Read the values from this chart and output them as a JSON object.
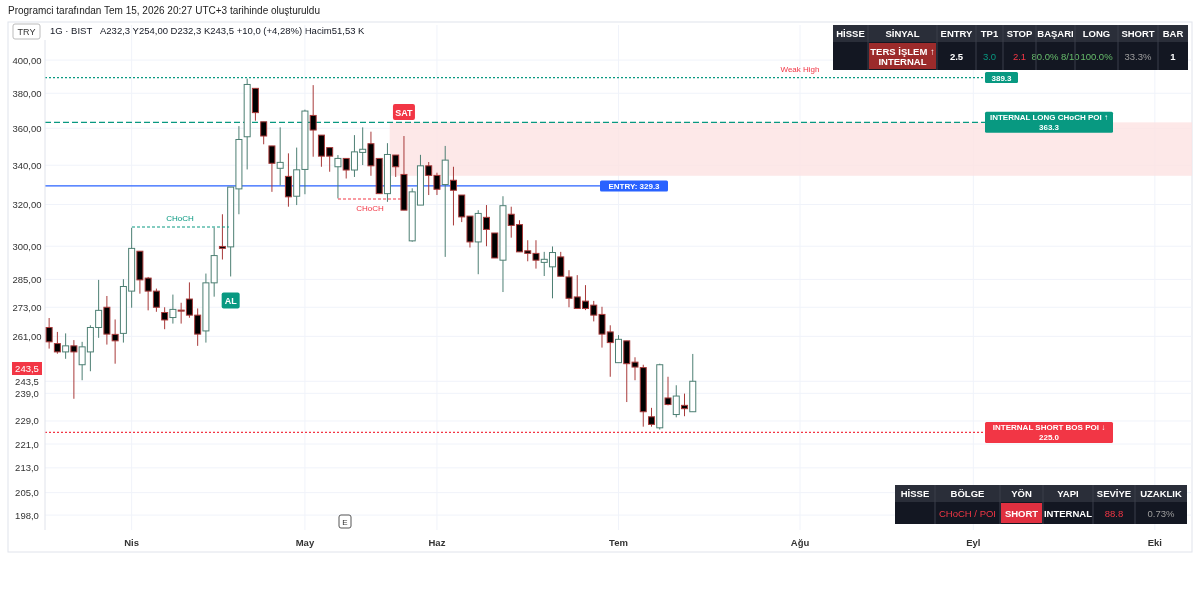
{
  "chart_data": [
    {
      "type": "candlestick",
      "title": "1G · BIST",
      "subtitle": "A232,3  Y254,00  D232,3  K243,5  +10,0 (+4,28%)  Hacim51,53 K",
      "categories": [
        null,
        null,
        null,
        null,
        null,
        null,
        null,
        null,
        null,
        null,
        "Nis",
        null,
        null,
        null,
        null,
        null,
        null,
        null,
        null,
        null,
        null,
        null,
        null,
        null,
        null,
        null,
        null,
        null,
        null,
        null,
        null,
        "May",
        null,
        null,
        null,
        null,
        null,
        null,
        null,
        null,
        null,
        null,
        null,
        null,
        null,
        null,
        null,
        "Haz",
        null,
        null,
        null,
        null,
        null,
        null,
        null,
        null,
        null,
        null,
        null,
        null,
        null,
        null,
        null,
        null,
        null,
        null,
        null,
        null,
        null,
        "Tem",
        null,
        null,
        null,
        null,
        null,
        null,
        null,
        null,
        null,
        null,
        null,
        null,
        null,
        null,
        null,
        null,
        null,
        null,
        null,
        null,
        null,
        "Ağu",
        null,
        null,
        null,
        null,
        null,
        null,
        null,
        null,
        null,
        null,
        null,
        null,
        null,
        null,
        null,
        null,
        null,
        null,
        null,
        null,
        "Eyl",
        null,
        null,
        null,
        null,
        null,
        null,
        null,
        null,
        null,
        null,
        null,
        null,
        null,
        null,
        null,
        null,
        null,
        null,
        null,
        null,
        null,
        "Eki",
        null,
        null,
        null,
        null
      ],
      "ohlc": [
        [
          264.6,
          268.5,
          256.1,
          258.8
        ],
        [
          258.1,
          262.8,
          254.1,
          254.8
        ],
        [
          254.8,
          262.2,
          252.1,
          257.2
        ],
        [
          257.2,
          259.5,
          237.0,
          254.8
        ],
        [
          249.8,
          258.8,
          243.9,
          256.8
        ],
        [
          254.8,
          265.5,
          247.3,
          264.6
        ],
        [
          264.6,
          284.8,
          260.4,
          271.7
        ],
        [
          273.0,
          277.8,
          257.7,
          261.9
        ],
        [
          261.8,
          267.9,
          250.2,
          259.2
        ],
        [
          262.2,
          285.1,
          258.5,
          281.9
        ],
        [
          279.9,
          308.7,
          272.8,
          299.0
        ],
        [
          297.7,
          297.7,
          278.8,
          284.8
        ],
        [
          285.6,
          286.1,
          271.7,
          279.9
        ],
        [
          279.9,
          281.0,
          271.1,
          273.0
        ],
        [
          270.8,
          273.0,
          263.9,
          267.7
        ],
        [
          268.7,
          278.4,
          266.2,
          272.1
        ],
        [
          271.8,
          274.9,
          266.2,
          271.7
        ],
        [
          276.5,
          283.7,
          268.6,
          269.7
        ],
        [
          269.7,
          272.5,
          257.2,
          261.9
        ],
        [
          263.2,
          287.6,
          258.5,
          283.5
        ],
        [
          283.5,
          308.7,
          277.5,
          295.7
        ],
        [
          299.9,
          315.2,
          293.9,
          299.0
        ],
        [
          299.7,
          328.7,
          286.3,
          328.7
        ],
        [
          327.8,
          361.2,
          315.2,
          353.8
        ],
        [
          355.3,
          388.7,
          337.8,
          385.2
        ],
        [
          382.9,
          382.9,
          364.2,
          368.8
        ],
        [
          363.6,
          363.6,
          351.2,
          355.7
        ],
        [
          350.3,
          350.3,
          326.3,
          341.0
        ],
        [
          338.4,
          360.5,
          329.6,
          341.5
        ],
        [
          334.2,
          346.3,
          318.9,
          323.8
        ],
        [
          324.1,
          349.4,
          319.7,
          337.6
        ],
        [
          337.8,
          370.5,
          325.1,
          369.7
        ],
        [
          367.2,
          384.8,
          344.5,
          359.0
        ],
        [
          356.2,
          356.2,
          339.2,
          344.8
        ],
        [
          349.4,
          349.4,
          336.6,
          344.8
        ],
        [
          339.2,
          345.4,
          323.0,
          343.6
        ],
        [
          343.6,
          343.6,
          333.1,
          337.5
        ],
        [
          337.5,
          356.2,
          333.9,
          347.1
        ],
        [
          346.8,
          360.5,
          340.1,
          348.5
        ],
        [
          351.5,
          358.1,
          334.5,
          339.7
        ],
        [
          343.6,
          343.6,
          325.4,
          325.4
        ],
        [
          325.4,
          351.8,
          321.3,
          345.7
        ],
        [
          345.4,
          345.4,
          333.9,
          339.2
        ],
        [
          335.2,
          355.7,
          317.2,
          317.2
        ],
        [
          302.5,
          328.1,
          302.1,
          326.3
        ],
        [
          319.7,
          345.5,
          319.7,
          339.7
        ],
        [
          339.7,
          341.7,
          324.7,
          334.7
        ],
        [
          334.7,
          336.1,
          324.7,
          327.6
        ],
        [
          330.0,
          350.3,
          295.1,
          342.7
        ],
        [
          332.2,
          339.2,
          309.8,
          327.1
        ],
        [
          324.7,
          324.7,
          311.4,
          313.9
        ],
        [
          314.3,
          314.3,
          299.4,
          302.0
        ],
        [
          302.0,
          317.2,
          287.3,
          315.6
        ],
        [
          313.7,
          319.7,
          300.0,
          307.9
        ],
        [
          306.2,
          306.2,
          294.6,
          294.6
        ],
        [
          293.6,
          324.1,
          279.5,
          319.4
        ],
        [
          315.2,
          318.9,
          304.0,
          309.8
        ],
        [
          310.2,
          312.3,
          297.4,
          297.4
        ],
        [
          297.9,
          302.8,
          293.1,
          296.7
        ],
        [
          296.7,
          302.8,
          289.8,
          293.6
        ],
        [
          292.6,
          297.4,
          286.5,
          294.0
        ],
        [
          290.6,
          299.9,
          276.8,
          297.1
        ],
        [
          295.1,
          297.4,
          286.4,
          286.4
        ],
        [
          286.1,
          289.1,
          273.0,
          276.8
        ],
        [
          277.4,
          286.9,
          272.5,
          272.5
        ],
        [
          275.6,
          282.5,
          271.8,
          272.5
        ],
        [
          273.9,
          275.7,
          267.1,
          269.7
        ],
        [
          270.0,
          273.2,
          256.5,
          261.9
        ],
        [
          262.8,
          265.5,
          245.2,
          258.5
        ],
        [
          250.6,
          261.5,
          250.6,
          259.8
        ],
        [
          259.2,
          259.2,
          235.8,
          250.2
        ],
        [
          250.8,
          252.7,
          243.9,
          248.9
        ],
        [
          248.7,
          249.8,
          227.0,
          232.3
        ],
        [
          230.5,
          233.7,
          227.0,
          227.8
        ],
        [
          226.6,
          250.2,
          226.0,
          249.8
        ],
        [
          237.3,
          245.2,
          234.6,
          234.9
        ],
        [
          231.3,
          242.0,
          230.3,
          238.0
        ],
        [
          234.6,
          238.9,
          230.7,
          233.4
        ],
        [
          232.3,
          254.0,
          232.3,
          243.5
        ],
        null,
        null,
        null,
        null,
        null,
        null,
        null,
        null,
        null,
        null,
        null,
        null,
        null,
        null,
        null,
        null,
        null,
        null,
        null,
        null,
        null,
        null,
        null,
        null,
        null,
        null,
        null,
        null,
        null,
        null,
        null,
        null,
        null,
        null,
        null,
        null,
        null,
        null,
        null,
        null,
        null,
        null,
        null,
        null,
        null,
        null,
        null,
        null,
        null,
        null,
        null,
        null,
        null,
        null,
        null,
        null,
        null,
        null,
        null,
        null
      ],
      "log": true,
      "ylim": [
        193.5,
        412.6
      ],
      "yticks": [
        {
          "value": 400,
          "label": "400,00"
        },
        {
          "value": 380,
          "label": "380,00"
        },
        {
          "value": 360,
          "label": "360,00"
        },
        {
          "value": 340,
          "label": "340,00"
        },
        {
          "value": 320,
          "label": "320,00"
        },
        {
          "value": 300,
          "label": "300,00"
        },
        {
          "value": 285,
          "label": "285,00"
        },
        {
          "value": 273,
          "label": "273,00"
        },
        {
          "value": 261,
          "label": "261,00"
        },
        {
          "value": 243.5,
          "label": "243,5"
        },
        {
          "value": 239,
          "label": "239,0"
        },
        {
          "value": 229,
          "label": "229,0"
        },
        {
          "value": 221,
          "label": "221,0"
        },
        {
          "value": 213,
          "label": "213,0"
        },
        {
          "value": 205,
          "label": "205,0"
        },
        {
          "value": 198,
          "label": "198,0"
        }
      ],
      "grid": true,
      "ref_lines": [
        {
          "axis": "y",
          "value": 389.3,
          "label": "389.3",
          "color": "#089981",
          "line_style": "dotted"
        },
        {
          "axis": "y",
          "value": 363.3,
          "label": "INTERNAL LONG CHoCH POI ↑ 363.3",
          "color": "#089981",
          "line_style": "dashed"
        },
        {
          "axis": "y",
          "value": 329.3,
          "label": "ENTRY: 329.3",
          "color": "#2962ff",
          "line_style": "solid"
        },
        {
          "axis": "y",
          "value": 225.0,
          "label": "INTERNAL SHORT BOS POI ↓ 225.0",
          "color": "#f23645",
          "line_style": "dotted"
        }
      ],
      "bands": [
        {
          "axis": "y",
          "from": 334.5,
          "to": 363.3,
          "color": "#fde2e2"
        }
      ],
      "annotations": [
        "TRY",
        "Programci tarafından Tem 15, 2026 20:27 UTC+3 tarihinde oluşturuldu",
        {
          "text": "AL",
          "y": 286.3
        },
        {
          "text": "SAT",
          "y": 355.7
        },
        "CHoCH",
        "CHoCH",
        {
          "text": "Weak High",
          "y": 389.3
        },
        "243,5",
        "E"
      ]
    },
    {
      "type": "other",
      "categories": [
        "HİSSE",
        "SİNYAL",
        "ENTRY",
        "TP1",
        "STOP",
        "BAŞARI",
        "LONG",
        "SHORT",
        "BAR"
      ],
      "annotations": [
        null,
        "TERS İŞLEM ↑ INTERNAL",
        "2.5",
        "3.0",
        "2.1",
        "80.0% 8/10",
        "100.0%",
        "33.3%",
        "1"
      ],
      "colors": [
        null,
        "#ffffff",
        "#ffffff",
        "#089981",
        "#f23645",
        "#66bb6a",
        "#66bb6a",
        "#9e9e9e",
        "#ffffff"
      ]
    },
    {
      "type": "other",
      "categories": [
        "HİSSE",
        "BÖLGE",
        "YÖN",
        "YAPI",
        "SEVİYE",
        "UZAKLIK"
      ],
      "annotations": [
        null,
        "CHoCH / POI",
        "SHORT",
        "INTERNAL",
        "88.8",
        "0.73%"
      ],
      "colors": [
        null,
        "#f23645",
        "#ffffff",
        "#ffffff",
        "#f23645",
        "#9e9e9e"
      ]
    }
  ]
}
